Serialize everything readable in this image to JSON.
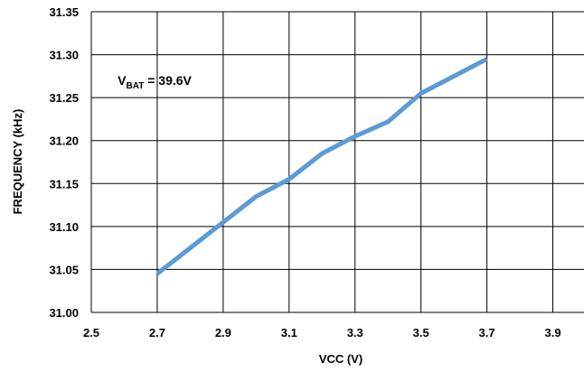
{
  "chart_data": {
    "type": "line",
    "xlabel": "VCC (V)",
    "ylabel": "FREQUENCY (kHz)",
    "xlim": [
      2.5,
      4.0
    ],
    "ylim": [
      31.0,
      31.35
    ],
    "x_ticks": [
      2.5,
      2.7,
      2.9,
      3.1,
      3.3,
      3.5,
      3.7,
      3.9
    ],
    "x_tick_labels": [
      "2.5",
      "2.7",
      "2.9",
      "3.1",
      "3.3",
      "3.5",
      "3.7",
      "3.9"
    ],
    "y_ticks": [
      31.0,
      31.05,
      31.1,
      31.15,
      31.2,
      31.25,
      31.3,
      31.35
    ],
    "y_tick_labels": [
      "31.00",
      "31.05",
      "31.10",
      "31.15",
      "31.20",
      "31.25",
      "31.30",
      "31.35"
    ],
    "grid": true,
    "annotation": {
      "main": "V",
      "subscript": "BAT",
      "rest": " = 39.6V",
      "x": 2.58,
      "y": 31.265
    },
    "series": [
      {
        "color": "#5b9bd5",
        "x": [
          2.7,
          2.8,
          2.9,
          3.0,
          3.1,
          3.2,
          3.3,
          3.4,
          3.5,
          3.6,
          3.7
        ],
        "y": [
          31.045,
          31.075,
          31.105,
          31.135,
          31.155,
          31.185,
          31.205,
          31.222,
          31.255,
          31.275,
          31.295
        ]
      }
    ]
  }
}
